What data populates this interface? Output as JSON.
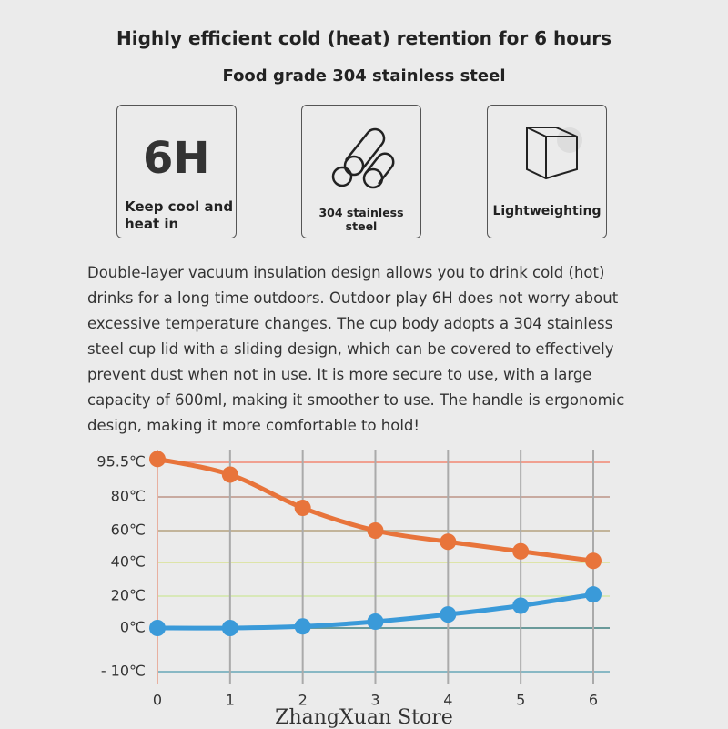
{
  "header": {
    "title": "Highly efficient cold (heat) retention for 6 hours",
    "subtitle": "Food grade 304 stainless steel"
  },
  "features": [
    {
      "badge": "6H",
      "label": "Keep cool and heat in"
    },
    {
      "label": "304 stainless steel"
    },
    {
      "label": "Lightweighting"
    }
  ],
  "description": "Double-layer vacuum insulation design allows you to drink cold (hot) drinks for a long time outdoors. Outdoor play 6H does not worry about excessive temperature changes. The cup body adopts a 304 stainless steel cup lid with a sliding design, which can be covered to effectively prevent dust when not in use. It is more secure to use, with a large capacity of 600ml, making it smoother to use. The handle is ergonomic design, making it more comfortable to hold!",
  "chart_data": {
    "type": "line",
    "x": [
      0,
      1,
      2,
      3,
      4,
      5,
      6
    ],
    "xlim": [
      0,
      6
    ],
    "xticks": [
      0,
      1,
      2,
      3,
      4,
      5,
      6
    ],
    "ylim": [
      -10,
      95.5
    ],
    "yticks": [
      {
        "value": 95.5,
        "label": "95.5℃"
      },
      {
        "value": 80,
        "label": "80℃"
      },
      {
        "value": 60,
        "label": "60℃"
      },
      {
        "value": 40,
        "label": "40℃"
      },
      {
        "value": 20,
        "label": "20℃"
      },
      {
        "value": 0,
        "label": "0℃"
      },
      {
        "value": -10,
        "label": "- 10℃"
      }
    ],
    "series": [
      {
        "color": "#e8743b",
        "values": [
          97,
          90,
          73.5,
          60,
          53,
          47,
          41
        ]
      },
      {
        "color": "#3a9ad9",
        "values": [
          0,
          0,
          1,
          4,
          8.5,
          14,
          21
        ]
      }
    ],
    "grid": true
  },
  "watermark": "ZhangXuan Store"
}
